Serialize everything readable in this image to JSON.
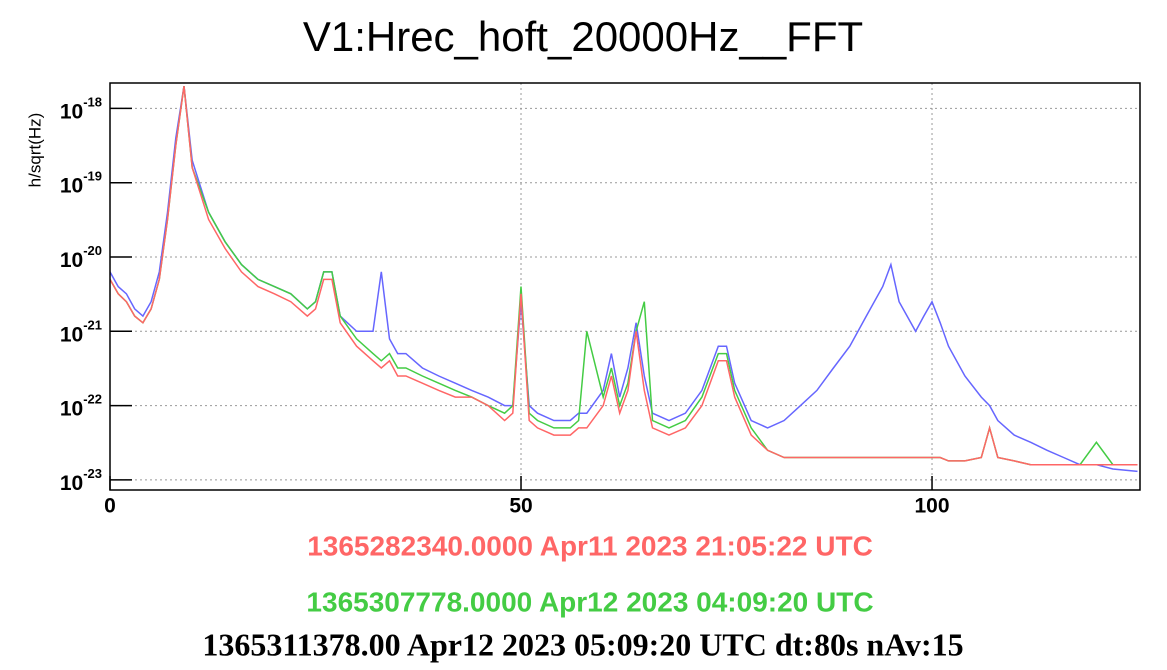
{
  "chart_data": {
    "type": "line",
    "title": "V1:Hrec_hoft_20000Hz__FFT",
    "y_label": "h/sqrt(Hz)",
    "log_y": true,
    "grid": true,
    "xlim": [
      0,
      125.3
    ],
    "xticks": [
      0,
      50,
      100
    ],
    "ylim": [
      7.3e-24,
      2.2e-18
    ],
    "yticks": [
      {
        "value": 1e-23,
        "label": "10-23"
      },
      {
        "value": 1e-22,
        "label": "10-22"
      },
      {
        "value": 1e-21,
        "label": "10-21"
      },
      {
        "value": 1e-20,
        "label": "10-20"
      },
      {
        "value": 1e-19,
        "label": "10-19"
      },
      {
        "value": 1e-18,
        "label": "10-18"
      }
    ],
    "x": [
      0,
      1,
      2,
      3,
      4,
      5,
      6,
      7,
      8,
      9,
      10,
      12,
      14,
      16,
      18,
      20,
      22,
      24,
      25,
      26,
      27,
      28,
      30,
      32,
      33,
      34,
      35,
      36,
      38,
      40,
      42,
      44,
      46,
      48,
      49,
      50,
      51,
      52,
      54,
      56,
      57,
      58,
      60,
      61,
      62,
      63,
      64,
      65,
      66,
      68,
      70,
      72,
      74,
      75,
      76,
      78,
      80,
      82,
      84,
      86,
      88,
      90,
      92,
      94,
      95,
      96,
      98,
      99,
      100,
      101,
      102,
      104,
      106,
      107,
      108,
      110,
      112,
      114,
      116,
      118,
      120,
      122,
      125
    ],
    "series": [
      {
        "name": "1365311378.00 Apr12 2023 05:09:20 UTC dt:80s nAv:15",
        "color": "#6666ff",
        "values": [
          6.3e-21,
          4e-21,
          3.2e-21,
          2e-21,
          1.6e-21,
          2.5e-21,
          6.3e-21,
          4e-20,
          4e-19,
          2e-18,
          2e-19,
          4e-20,
          1.6e-20,
          7.9e-21,
          5e-21,
          4e-21,
          3.2e-21,
          2e-21,
          2.5e-21,
          6.3e-21,
          6.3e-21,
          1.6e-21,
          1e-21,
          1e-21,
          6.3e-21,
          7.9e-22,
          5e-22,
          5e-22,
          3.2e-22,
          2.5e-22,
          2e-22,
          1.6e-22,
          1.3e-22,
          1e-22,
          1e-22,
          2.5e-21,
          1e-22,
          7.9e-23,
          6.3e-23,
          6.3e-23,
          7.9e-23,
          7.9e-23,
          1.6e-22,
          5e-22,
          1.3e-22,
          3.2e-22,
          1.3e-21,
          2.5e-22,
          7.9e-23,
          6.3e-23,
          7.9e-23,
          1.6e-22,
          6.3e-22,
          6.3e-22,
          2e-22,
          6.3e-23,
          5e-23,
          6.3e-23,
          1e-22,
          1.6e-22,
          3.2e-22,
          6.3e-22,
          1.6e-21,
          4e-21,
          7.9e-21,
          2.5e-21,
          1e-21,
          1.6e-21,
          2.5e-21,
          1.3e-21,
          6.3e-22,
          2.5e-22,
          1.3e-22,
          1e-22,
          6.3e-23,
          4e-23,
          3.2e-23,
          2.5e-23,
          2e-23,
          1.6e-23,
          1.6e-23,
          1.4e-23,
          1.3e-23
        ]
      },
      {
        "name": "1365307778.0000 Apr12 2023 04:09:20 UTC",
        "color": "#44cc44",
        "values": [
          5e-21,
          3.2e-21,
          2.5e-21,
          1.6e-21,
          1.3e-21,
          2e-21,
          5e-21,
          3.2e-20,
          3.2e-19,
          2e-18,
          1.6e-19,
          4e-20,
          1.6e-20,
          7.9e-21,
          5e-21,
          4e-21,
          3.2e-21,
          2e-21,
          2.5e-21,
          6.3e-21,
          6.3e-21,
          1.6e-21,
          7.9e-22,
          5e-22,
          4e-22,
          5e-22,
          3.2e-22,
          3.2e-22,
          2.5e-22,
          2e-22,
          1.6e-22,
          1.3e-22,
          1e-22,
          7.9e-23,
          1e-22,
          4e-21,
          7.9e-23,
          6.3e-23,
          5e-23,
          5e-23,
          6.3e-23,
          1e-21,
          1.3e-22,
          3.2e-22,
          1e-22,
          2e-22,
          1e-21,
          2.5e-21,
          6.3e-23,
          5e-23,
          6.3e-23,
          1.3e-22,
          5e-22,
          5e-22,
          1.6e-22,
          5e-23,
          2.5e-23,
          2e-23,
          2e-23,
          2e-23,
          2e-23,
          2e-23,
          2e-23,
          2e-23,
          2e-23,
          2e-23,
          2e-23,
          2e-23,
          2e-23,
          2e-23,
          1.8e-23,
          1.8e-23,
          2e-23,
          5e-23,
          2e-23,
          1.8e-23,
          1.6e-23,
          1.6e-23,
          1.6e-23,
          1.6e-23,
          3.2e-23,
          1.6e-23,
          1.6e-23
        ]
      },
      {
        "name": "1365282340.0000 Apr11 2023 21:05:22 UTC",
        "color": "#ff6666",
        "values": [
          5e-21,
          3.2e-21,
          2.5e-21,
          1.6e-21,
          1.3e-21,
          2e-21,
          5e-21,
          3.2e-20,
          3.2e-19,
          2e-18,
          1.6e-19,
          3.2e-20,
          1.3e-20,
          6.3e-21,
          4e-21,
          3.2e-21,
          2.5e-21,
          1.6e-21,
          2e-21,
          5e-21,
          5e-21,
          1.3e-21,
          6.3e-22,
          4e-22,
          3.2e-22,
          4e-22,
          2.5e-22,
          2.5e-22,
          2e-22,
          1.6e-22,
          1.3e-22,
          1.3e-22,
          1e-22,
          6.3e-23,
          7.9e-23,
          3.2e-21,
          6.3e-23,
          5e-23,
          4e-23,
          4e-23,
          5e-23,
          5e-23,
          1e-22,
          2.5e-22,
          7.9e-23,
          1.6e-22,
          1e-21,
          1.6e-22,
          5e-23,
          4e-23,
          5e-23,
          1e-22,
          4e-22,
          4e-22,
          1.3e-22,
          4e-23,
          2.5e-23,
          2e-23,
          2e-23,
          2e-23,
          2e-23,
          2e-23,
          2e-23,
          2e-23,
          2e-23,
          2e-23,
          2e-23,
          2e-23,
          2e-23,
          2e-23,
          1.8e-23,
          1.8e-23,
          2e-23,
          5e-23,
          2e-23,
          1.8e-23,
          1.6e-23,
          1.6e-23,
          1.6e-23,
          1.6e-23,
          1.6e-23,
          1.6e-23,
          1.6e-23
        ]
      }
    ]
  }
}
